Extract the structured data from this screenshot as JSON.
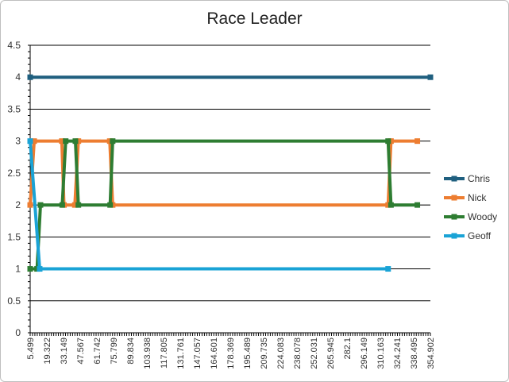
{
  "chart_data": {
    "type": "line",
    "title": "Race Leader",
    "xlabel": "",
    "ylabel": "",
    "ylim": [
      0,
      4.5
    ],
    "y_ticks": [
      0,
      0.5,
      1,
      1.5,
      2,
      2.5,
      3,
      3.5,
      4,
      4.5
    ],
    "x_range": [
      5.499,
      354.902
    ],
    "x_tick_labels": [
      "5.499",
      "19.322",
      "33.149",
      "47.567",
      "61.742",
      "75.799",
      "89.834",
      "103.938",
      "117.805",
      "131.761",
      "147.057",
      "164.601",
      "178.369",
      "195.489",
      "209.735",
      "224.083",
      "238.078",
      "252.031",
      "265.945",
      "282.1",
      "296.149",
      "310.163",
      "324.241",
      "338.495",
      "354.902"
    ],
    "grid": true,
    "legend_position": "right",
    "series": [
      {
        "name": "Chris",
        "color": "#1f5f7f",
        "points": [
          [
            5.499,
            4
          ],
          [
            354.902,
            4
          ]
        ]
      },
      {
        "name": "Nick",
        "color": "#ed7d31",
        "points": [
          [
            5.499,
            2
          ],
          [
            9.0,
            3
          ],
          [
            33.149,
            3
          ],
          [
            35.0,
            2
          ],
          [
            44.5,
            2
          ],
          [
            47.567,
            3
          ],
          [
            75.0,
            3
          ],
          [
            77.5,
            2
          ],
          [
            318.0,
            2
          ],
          [
            320.5,
            3
          ],
          [
            343.5,
            3
          ]
        ]
      },
      {
        "name": "Woody",
        "color": "#2e7d32",
        "points": [
          [
            5.499,
            1
          ],
          [
            11.5,
            1
          ],
          [
            14.5,
            2
          ],
          [
            33.5,
            2
          ],
          [
            36.5,
            3
          ],
          [
            45.0,
            3
          ],
          [
            47.567,
            2
          ],
          [
            75.3,
            2
          ],
          [
            77.5,
            3
          ],
          [
            318.0,
            3
          ],
          [
            320.5,
            2
          ],
          [
            343.5,
            2
          ]
        ]
      },
      {
        "name": "Geoff",
        "color": "#1aa3d6",
        "points": [
          [
            5.499,
            3
          ],
          [
            13.8,
            1
          ],
          [
            318.0,
            1
          ]
        ]
      }
    ]
  }
}
